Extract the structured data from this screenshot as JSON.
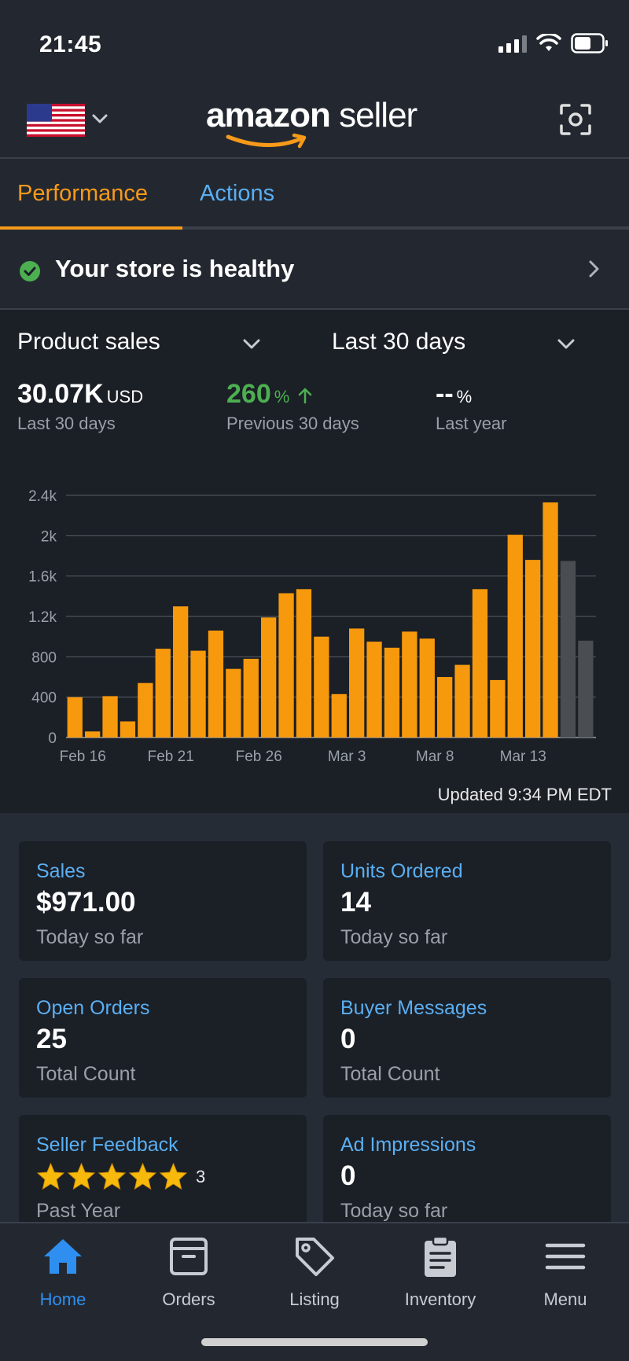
{
  "status_bar": {
    "time": "21:45"
  },
  "header": {
    "logo_brand": "amazon",
    "logo_suffix": "seller",
    "flag_icon": "us-flag-icon",
    "scan_icon": "camera-scan-icon"
  },
  "tabs": [
    {
      "label": "Performance",
      "active": true
    },
    {
      "label": "Actions",
      "active": false
    }
  ],
  "health": {
    "text": "Your store is healthy"
  },
  "sales": {
    "metric_label": "Product sales",
    "range_label": "Last 30 days",
    "stats": [
      {
        "value": "30.07K",
        "unit": "USD",
        "sub": "Last 30 days"
      },
      {
        "value": "260",
        "unit": "%",
        "sub": "Previous 30 days"
      },
      {
        "value": "--",
        "unit": "%",
        "sub": "Last year"
      }
    ],
    "updated": "Updated 9:34 PM EDT"
  },
  "chart_data": {
    "type": "bar",
    "ylim": [
      0,
      2400
    ],
    "ticks": [
      "0",
      "400",
      "800",
      "1.2k",
      "1.6k",
      "2k",
      "2.4k"
    ],
    "tick_values": [
      0,
      400,
      800,
      1200,
      1600,
      2000,
      2400
    ],
    "x_labels": [
      "Feb 16",
      "Feb 21",
      "Feb 26",
      "Mar 3",
      "Mar 8",
      "Mar 13"
    ],
    "x_label_index": [
      0,
      5,
      10,
      15,
      20,
      25
    ],
    "values": [
      400,
      60,
      410,
      160,
      540,
      880,
      1300,
      860,
      1060,
      680,
      780,
      1190,
      1430,
      1470,
      1000,
      430,
      1080,
      950,
      890,
      1050,
      980,
      600,
      720,
      1470,
      570,
      2010,
      1760,
      2330,
      1750,
      960
    ],
    "highlight_color": "#f7990c",
    "muted_color": "#4a4d52",
    "muted_indices": [
      28,
      29
    ],
    "grid": true
  },
  "cards": [
    {
      "title": "Sales",
      "value": "$971.00",
      "sub": "Today so far"
    },
    {
      "title": "Units Ordered",
      "value": "14",
      "sub": "Today so far"
    },
    {
      "title": "Open Orders",
      "value": "25",
      "sub": "Total Count"
    },
    {
      "title": "Buyer Messages",
      "value": "0",
      "sub": "Total Count"
    },
    {
      "title": "Seller Feedback",
      "rating": 5,
      "count": "3",
      "sub": "Past Year"
    },
    {
      "title": "Ad Impressions",
      "value": "0",
      "sub": "Today so far"
    }
  ],
  "nav": [
    {
      "label": "Home",
      "icon": "home-icon",
      "active": true
    },
    {
      "label": "Orders",
      "icon": "box-icon",
      "active": false
    },
    {
      "label": "Listing",
      "icon": "tag-icon",
      "active": false
    },
    {
      "label": "Inventory",
      "icon": "clipboard-icon",
      "active": false
    },
    {
      "label": "Menu",
      "icon": "hamburger-icon",
      "active": false
    }
  ],
  "colors": {
    "accent": "#f79a1a",
    "link": "#5aaff2",
    "positive": "#4caf50",
    "nav_active": "#2f8ff0"
  }
}
